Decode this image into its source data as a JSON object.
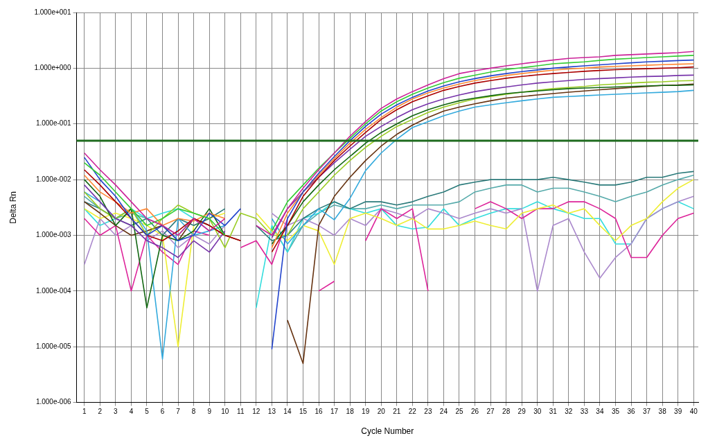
{
  "chart_data": {
    "type": "line",
    "xlabel": "Cycle Number",
    "ylabel": "Delta Rn",
    "log": "y",
    "grid": true,
    "legend": false,
    "marker": "none",
    "line_style": "solid",
    "x": [
      1,
      2,
      3,
      4,
      5,
      6,
      7,
      8,
      9,
      10,
      11,
      12,
      13,
      14,
      15,
      16,
      17,
      18,
      19,
      20,
      21,
      22,
      23,
      24,
      25,
      26,
      27,
      28,
      29,
      30,
      31,
      32,
      33,
      34,
      35,
      36,
      37,
      38,
      39,
      40
    ],
    "xlim": [
      0.5,
      40.3
    ],
    "xticks": [
      1,
      2,
      3,
      4,
      5,
      6,
      7,
      8,
      9,
      10,
      11,
      12,
      13,
      14,
      15,
      16,
      17,
      18,
      19,
      20,
      21,
      22,
      23,
      24,
      25,
      26,
      27,
      28,
      29,
      30,
      31,
      32,
      33,
      34,
      35,
      36,
      37,
      38,
      39,
      40
    ],
    "ylim": [
      1e-06,
      10
    ],
    "yticks": [
      {
        "value": 1e-06,
        "label": "1.000e-006"
      },
      {
        "value": 1e-05,
        "label": "1.000e-005"
      },
      {
        "value": 0.0001,
        "label": "1.000e-004"
      },
      {
        "value": 0.001,
        "label": "1.000e-003"
      },
      {
        "value": 0.01,
        "label": "1.000e-002"
      },
      {
        "value": 0.1,
        "label": "1.000e-001"
      },
      {
        "value": 1,
        "label": "1.000e+000"
      },
      {
        "value": 10,
        "label": "1.000e+001"
      }
    ],
    "ref_lines": [
      {
        "axis": "y",
        "value": 0.05,
        "color": "#1f6b1f"
      }
    ],
    "series": [
      {
        "color": "#cc2299",
        "values": [
          0.03,
          0.015,
          0.008,
          0.004,
          0.002,
          0.0015,
          0.001,
          0.002,
          0.0012,
          0.002,
          null,
          0.0015,
          0.001,
          0.003,
          0.007,
          0.015,
          0.03,
          0.06,
          0.11,
          0.19,
          0.28,
          0.38,
          0.5,
          0.65,
          0.8,
          0.9,
          1.0,
          1.1,
          1.2,
          1.3,
          1.4,
          1.5,
          1.55,
          1.6,
          1.7,
          1.75,
          1.8,
          1.85,
          1.9,
          2.0
        ]
      },
      {
        "color": "#33cc33",
        "values": [
          0.02,
          0.012,
          0.006,
          0.003,
          0.0015,
          0.002,
          0.003,
          0.0025,
          0.002,
          0.001,
          null,
          null,
          0.0012,
          0.004,
          0.008,
          0.016,
          0.03,
          0.055,
          0.1,
          0.17,
          0.25,
          0.34,
          0.44,
          0.55,
          0.66,
          0.75,
          0.85,
          0.95,
          1.02,
          1.1,
          1.2,
          1.25,
          1.3,
          1.38,
          1.45,
          1.5,
          1.55,
          1.6,
          1.65,
          1.7
        ]
      },
      {
        "color": "#2244cc",
        "values": [
          0.025,
          0.01,
          0.005,
          0.002,
          0.001,
          0.0015,
          0.0008,
          0.001,
          0.0025,
          0.0015,
          0.003,
          null,
          9e-06,
          0.002,
          0.006,
          0.013,
          0.026,
          0.05,
          0.09,
          0.15,
          0.22,
          0.3,
          0.39,
          0.48,
          0.57,
          0.65,
          0.73,
          0.8,
          0.87,
          0.93,
          1.0,
          1.05,
          1.1,
          1.15,
          1.2,
          1.25,
          1.3,
          1.33,
          1.37,
          1.4
        ]
      },
      {
        "color": "#aa0000",
        "values": [
          0.015,
          0.008,
          0.004,
          0.002,
          0.001,
          0.0008,
          0.0012,
          0.002,
          0.0015,
          0.001,
          0.0008,
          null,
          0.0005,
          0.0015,
          0.005,
          0.011,
          0.022,
          0.04,
          0.07,
          0.12,
          0.18,
          0.25,
          0.32,
          0.4,
          0.47,
          0.54,
          0.6,
          0.66,
          0.71,
          0.76,
          0.8,
          0.84,
          0.88,
          0.91,
          0.94,
          0.96,
          0.98,
          1.0,
          1.02,
          1.05
        ]
      },
      {
        "color": "#ff8833",
        "values": [
          0.012,
          0.006,
          0.004,
          0.0025,
          0.003,
          0.0015,
          0.002,
          0.0018,
          0.0025,
          0.002,
          null,
          null,
          0.0006,
          0.0025,
          0.006,
          0.012,
          0.024,
          0.045,
          0.08,
          0.13,
          0.2,
          0.28,
          0.36,
          0.44,
          0.52,
          0.6,
          0.67,
          0.74,
          0.8,
          0.86,
          0.92,
          0.97,
          1.0,
          1.05,
          1.08,
          1.1,
          1.13,
          1.16,
          1.18,
          1.2
        ]
      },
      {
        "color": "#7733aa",
        "values": [
          0.008,
          0.004,
          0.002,
          0.0015,
          0.0008,
          0.0006,
          0.0004,
          0.0008,
          0.0005,
          0.0012,
          null,
          null,
          0.0009,
          0.003,
          0.006,
          0.011,
          0.02,
          0.035,
          0.06,
          0.09,
          0.13,
          0.18,
          0.23,
          0.28,
          0.33,
          0.38,
          0.42,
          0.46,
          0.5,
          0.54,
          0.57,
          0.6,
          0.63,
          0.65,
          0.67,
          0.69,
          0.71,
          0.72,
          0.74,
          0.75
        ]
      },
      {
        "color": "#116611",
        "values": [
          0.01,
          0.005,
          0.0015,
          0.003,
          5e-05,
          0.001,
          0.0008,
          0.0012,
          0.003,
          0.001,
          null,
          null,
          0.0007,
          0.0015,
          0.004,
          0.008,
          0.015,
          0.026,
          0.045,
          0.07,
          0.1,
          0.14,
          0.18,
          0.22,
          0.26,
          0.29,
          0.32,
          0.35,
          0.37,
          0.39,
          0.41,
          0.43,
          0.44,
          0.45,
          0.46,
          0.47,
          0.48,
          0.49,
          0.49,
          0.5
        ]
      },
      {
        "color": "#99cc22",
        "values": [
          0.006,
          0.003,
          0.002,
          0.003,
          0.001,
          0.002,
          0.0035,
          0.0025,
          0.002,
          0.0006,
          0.0025,
          0.002,
          0.001,
          0.001,
          0.003,
          0.006,
          0.012,
          0.022,
          0.038,
          0.06,
          0.09,
          0.12,
          0.16,
          0.2,
          0.24,
          0.28,
          0.31,
          0.34,
          0.37,
          0.4,
          0.43,
          0.45,
          0.47,
          0.5,
          0.52,
          0.54,
          0.56,
          0.57,
          0.59,
          0.6
        ]
      },
      {
        "color": "#33aadd",
        "values": [
          0.006,
          0.004,
          0.002,
          0.003,
          0.0012,
          6e-06,
          0.002,
          0.001,
          0.0012,
          0.0015,
          null,
          null,
          0.002,
          0.0007,
          0.0015,
          0.003,
          0.0019,
          0.0046,
          0.0145,
          0.03,
          0.053,
          0.086,
          0.11,
          0.14,
          0.17,
          0.2,
          0.22,
          0.24,
          0.26,
          0.28,
          0.3,
          0.31,
          0.32,
          0.33,
          0.34,
          0.35,
          0.36,
          0.37,
          0.38,
          0.4
        ]
      },
      {
        "color": "#663311",
        "values": [
          0.004,
          0.0025,
          0.0015,
          0.001,
          0.0012,
          0.0015,
          0.0008,
          0.002,
          0.0015,
          0.001,
          0.0008,
          null,
          null,
          3e-05,
          5e-06,
          0.0015,
          0.005,
          0.011,
          0.022,
          0.04,
          0.065,
          0.095,
          0.13,
          0.17,
          0.2,
          0.23,
          0.26,
          0.29,
          0.31,
          0.33,
          0.35,
          0.37,
          0.39,
          0.41,
          0.43,
          0.45,
          0.47,
          0.49,
          0.5,
          0.52
        ]
      },
      {
        "color": "#2a7a7a",
        "values": [
          0.004,
          0.003,
          0.002,
          0.0015,
          0.002,
          0.001,
          0.002,
          0.0015,
          0.002,
          0.003,
          null,
          0.0015,
          0.0008,
          0.001,
          0.002,
          0.003,
          0.004,
          0.003,
          0.004,
          0.004,
          0.0035,
          0.004,
          0.005,
          0.006,
          0.008,
          0.009,
          0.01,
          0.01,
          0.01,
          0.01,
          0.011,
          0.01,
          0.009,
          0.008,
          0.008,
          0.009,
          0.011,
          0.011,
          0.013,
          0.014
        ]
      },
      {
        "color": "#eeee33",
        "values": [
          0.003,
          0.002,
          0.0025,
          0.002,
          0.0015,
          0.001,
          1e-05,
          0.0015,
          0.002,
          0.0025,
          null,
          0.0025,
          0.0012,
          0.0008,
          0.0015,
          0.0012,
          0.0003,
          0.002,
          0.0025,
          0.002,
          0.0015,
          0.002,
          0.0013,
          0.0013,
          0.0015,
          0.0018,
          0.0015,
          0.0013,
          0.0025,
          0.003,
          0.0035,
          0.0025,
          0.003,
          0.0015,
          0.0008,
          0.0015,
          0.002,
          0.004,
          0.007,
          0.01
        ]
      },
      {
        "color": "#dd2299",
        "values": [
          0.002,
          0.001,
          0.0015,
          0.0001,
          0.001,
          0.0005,
          0.0003,
          0.0012,
          0.001,
          null,
          0.0006,
          0.0008,
          0.0003,
          0.002,
          null,
          0.0001,
          0.00015,
          null,
          0.0008,
          0.003,
          0.002,
          0.003,
          0.0001,
          null,
          null,
          0.003,
          0.004,
          0.003,
          0.002,
          0.003,
          0.003,
          0.004,
          0.004,
          0.003,
          0.002,
          0.0004,
          0.0004,
          0.001,
          0.002,
          0.0025
        ]
      },
      {
        "color": "#aa88cc",
        "values": [
          0.0003,
          0.002,
          0.001,
          0.0015,
          0.0008,
          0.0012,
          0.0006,
          0.001,
          0.0007,
          0.0015,
          null,
          null,
          0.0025,
          0.0015,
          0.002,
          0.0015,
          0.001,
          0.002,
          0.0015,
          0.003,
          0.0025,
          0.002,
          0.003,
          0.0025,
          0.002,
          0.0025,
          0.003,
          0.0025,
          0.003,
          0.0001,
          0.0015,
          0.002,
          0.0005,
          0.00017,
          0.0004,
          0.0007,
          0.002,
          0.003,
          0.004,
          0.005
        ]
      },
      {
        "color": "#33dddd",
        "values": [
          0.003,
          0.0015,
          0.002,
          0.003,
          0.002,
          0.0025,
          0.003,
          0.002,
          0.0015,
          null,
          null,
          5e-05,
          0.0015,
          0.0005,
          0.002,
          0.0025,
          0.004,
          0.003,
          0.0025,
          0.003,
          0.0015,
          0.0013,
          0.0014,
          0.003,
          0.0015,
          0.002,
          0.0025,
          0.003,
          0.003,
          0.004,
          0.003,
          0.0025,
          0.002,
          0.002,
          0.0007,
          0.0007,
          0.002,
          0.003,
          0.004,
          0.003
        ]
      },
      {
        "color": "#55aaaa",
        "values": [
          0.005,
          0.003,
          0.002,
          0.0025,
          0.002,
          0.0015,
          0.001,
          0.002,
          0.0012,
          null,
          null,
          null,
          0.0015,
          0.0005,
          0.0015,
          0.0025,
          0.0035,
          0.003,
          0.003,
          0.0035,
          0.003,
          0.0035,
          0.0035,
          0.0035,
          0.004,
          0.006,
          0.007,
          0.008,
          0.008,
          0.006,
          0.007,
          0.007,
          0.006,
          0.005,
          0.004,
          0.005,
          0.006,
          0.008,
          0.01,
          0.012
        ]
      }
    ]
  }
}
